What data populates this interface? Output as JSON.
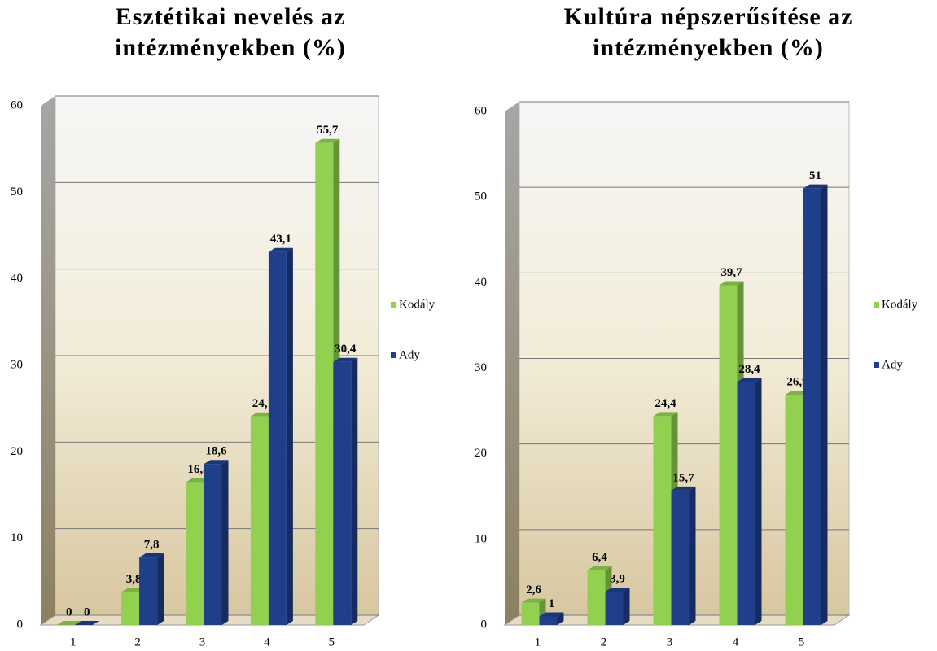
{
  "chart_data": [
    {
      "type": "bar",
      "title": "Esztétikai nevelés az intézményekben (%)",
      "categories": [
        "1",
        "2",
        "3",
        "4",
        "5"
      ],
      "series": [
        {
          "name": "Kodály",
          "color": "#92d050",
          "values": [
            0,
            3.8,
            16.5,
            24.1,
            55.7
          ],
          "value_labels": [
            "0",
            "3,8",
            "16,5",
            "24,1",
            "55,7"
          ]
        },
        {
          "name": "Ady",
          "color": "#1f3f8a",
          "values": [
            0,
            7.8,
            18.6,
            43.1,
            30.4
          ],
          "value_labels": [
            "0",
            "7,8",
            "18,6",
            "43,1",
            "30,4"
          ]
        }
      ],
      "ylim": [
        0,
        60
      ],
      "yticks": [
        0,
        10,
        20,
        30,
        40,
        50,
        60
      ],
      "grid": true,
      "legend": "right"
    },
    {
      "type": "bar",
      "title": "Kultúra népszerűsítése az intézményekben (%)",
      "categories": [
        "1",
        "2",
        "3",
        "4",
        "5"
      ],
      "series": [
        {
          "name": "Kodály",
          "color": "#92d050",
          "values": [
            2.6,
            6.4,
            24.4,
            39.7,
            26.9
          ],
          "value_labels": [
            "2,6",
            "6,4",
            "24,4",
            "39,7",
            "26,9"
          ]
        },
        {
          "name": "Ady",
          "color": "#1f3f8a",
          "values": [
            1,
            3.9,
            15.7,
            28.4,
            51
          ],
          "value_labels": [
            "1",
            "3,9",
            "15,7",
            "28,4",
            "51"
          ]
        }
      ],
      "ylim": [
        0,
        60
      ],
      "yticks": [
        0,
        10,
        20,
        30,
        40,
        50,
        60
      ],
      "grid": true,
      "legend": "right"
    }
  ]
}
